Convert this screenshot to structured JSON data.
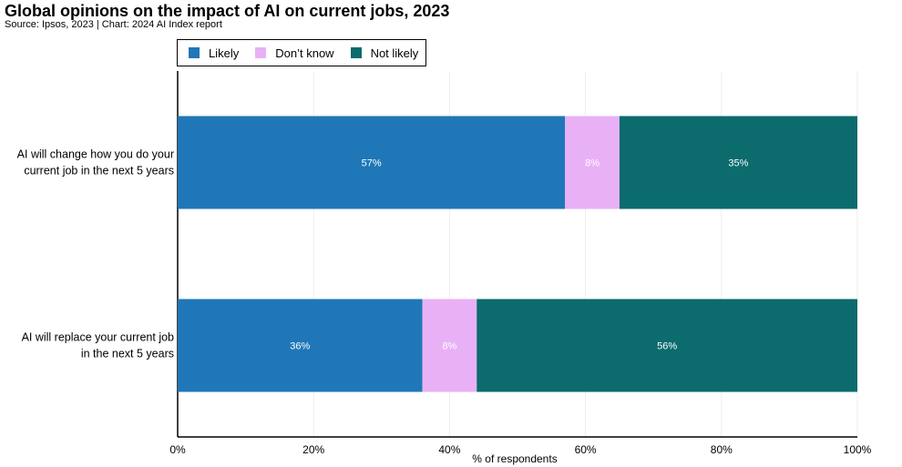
{
  "title": "Global opinions on the impact of AI on current jobs, 2023",
  "source": "Source: Ipsos, 2023 | Chart: 2024 AI Index report",
  "chart_data": {
    "type": "bar",
    "orientation": "horizontal",
    "stacked": true,
    "title": "Global opinions on the impact of AI on current jobs, 2023",
    "xlabel": "% of respondents",
    "ylabel": "",
    "xlim": [
      0,
      100
    ],
    "xticks": [
      "0%",
      "20%",
      "40%",
      "60%",
      "80%",
      "100%"
    ],
    "grid": true,
    "legend_position": "top",
    "categories": [
      [
        "AI will change how you do your",
        "current job in the next 5 years"
      ],
      [
        "AI will replace your current job",
        "in the next 5 years"
      ]
    ],
    "series": [
      {
        "name": "Likely",
        "color": "#1f77b8",
        "values": [
          57,
          36
        ],
        "labels": [
          "57%",
          "36%"
        ]
      },
      {
        "name": "Don’t know",
        "color": "#e8b1f6",
        "values": [
          8,
          8
        ],
        "labels": [
          "8%",
          "8%"
        ]
      },
      {
        "name": "Not likely",
        "color": "#0b6b6d",
        "values": [
          35,
          56
        ],
        "labels": [
          "35%",
          "56%"
        ]
      }
    ]
  }
}
